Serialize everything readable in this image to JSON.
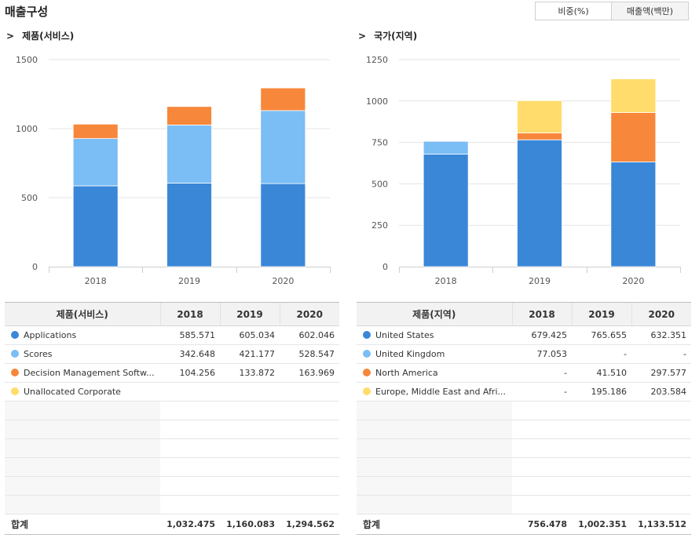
{
  "page": {
    "title": "매출구성"
  },
  "toggle": {
    "ratio_label": "비중(%)",
    "amount_label": "매출액(백만)"
  },
  "left": {
    "title": "제품(서비스)",
    "table_header": [
      "제품(서비스)",
      "2018",
      "2019",
      "2020"
    ],
    "rows": [
      {
        "name": "Applications",
        "color": "#3a87d8",
        "values": [
          "585.571",
          "605.034",
          "602.046"
        ]
      },
      {
        "name": "Scores",
        "color": "#7bbdf5",
        "values": [
          "342.648",
          "421.177",
          "528.547"
        ]
      },
      {
        "name": "Decision Management Softw...",
        "color": "#f7873a",
        "values": [
          "104.256",
          "133.872",
          "163.969"
        ]
      },
      {
        "name": "Unallocated Corporate",
        "color": "#ffdc6b",
        "values": [
          "",
          "",
          ""
        ]
      }
    ],
    "total_label": "합계",
    "totals": [
      "1,032.475",
      "1,160.083",
      "1,294.562"
    ]
  },
  "right": {
    "title": "국가(지역)",
    "table_header": [
      "제품(지역)",
      "2018",
      "2019",
      "2020"
    ],
    "rows": [
      {
        "name": "United States",
        "color": "#3a87d8",
        "values": [
          "679.425",
          "765.655",
          "632.351"
        ]
      },
      {
        "name": "United Kingdom",
        "color": "#7bbdf5",
        "values": [
          "77.053",
          "-",
          "-"
        ]
      },
      {
        "name": "North America",
        "color": "#f7873a",
        "values": [
          "-",
          "41.510",
          "297.577"
        ]
      },
      {
        "name": "Europe, Middle East and Afri...",
        "color": "#ffdc6b",
        "values": [
          "-",
          "195.186",
          "203.584"
        ]
      }
    ],
    "total_label": "합계",
    "totals": [
      "756.478",
      "1,002.351",
      "1,133.512"
    ]
  },
  "chart_data": [
    {
      "type": "bar",
      "stacked": true,
      "title": "제품(서비스)",
      "categories": [
        "2018",
        "2019",
        "2020"
      ],
      "ylim": [
        0,
        1500
      ],
      "yticks": [
        0,
        500,
        1000,
        1500
      ],
      "grid": true,
      "series": [
        {
          "name": "Applications",
          "color": "#3a87d8",
          "values": [
            585.571,
            605.034,
            602.046
          ]
        },
        {
          "name": "Scores",
          "color": "#7bbdf5",
          "values": [
            342.648,
            421.177,
            528.547
          ]
        },
        {
          "name": "Decision Management Softw...",
          "color": "#f7873a",
          "values": [
            104.256,
            133.872,
            163.969
          ]
        },
        {
          "name": "Unallocated Corporate",
          "color": "#ffdc6b",
          "values": [
            0,
            0,
            0
          ]
        }
      ]
    },
    {
      "type": "bar",
      "stacked": true,
      "title": "국가(지역)",
      "categories": [
        "2018",
        "2019",
        "2020"
      ],
      "ylim": [
        0,
        1250
      ],
      "yticks": [
        0,
        250,
        500,
        750,
        1000,
        1250
      ],
      "grid": true,
      "series": [
        {
          "name": "United States",
          "color": "#3a87d8",
          "values": [
            679.425,
            765.655,
            632.351
          ]
        },
        {
          "name": "United Kingdom",
          "color": "#7bbdf5",
          "values": [
            77.053,
            0,
            0
          ]
        },
        {
          "name": "North America",
          "color": "#f7873a",
          "values": [
            0,
            41.51,
            297.577
          ]
        },
        {
          "name": "Europe, Middle East and Afri...",
          "color": "#ffdc6b",
          "values": [
            0,
            195.186,
            203.584
          ]
        }
      ]
    }
  ]
}
